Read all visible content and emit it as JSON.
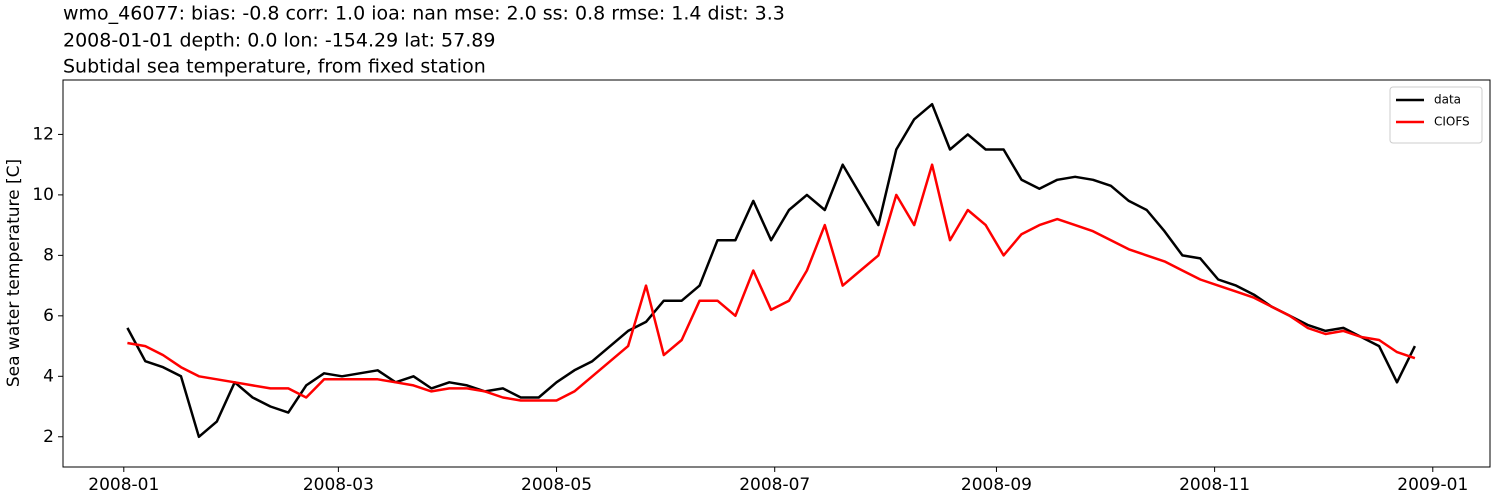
{
  "chart_data": {
    "type": "line",
    "title_lines": [
      "wmo_46077: bias: -0.8  corr: 1.0  ioa: nan  mse: 2.0  ss: 0.8  rmse: 1.4  dist: 3.3",
      "2008-01-01 depth: 0.0 lon: -154.29 lat: 57.89",
      "Subtidal sea temperature, from fixed station"
    ],
    "ylabel": "Sea water temperature [C]",
    "x": [
      "2008-01-02",
      "2008-01-07",
      "2008-01-12",
      "2008-01-17",
      "2008-01-22",
      "2008-01-27",
      "2008-02-01",
      "2008-02-06",
      "2008-02-11",
      "2008-02-16",
      "2008-02-21",
      "2008-02-26",
      "2008-03-02",
      "2008-03-07",
      "2008-03-12",
      "2008-03-17",
      "2008-03-22",
      "2008-03-27",
      "2008-04-01",
      "2008-04-06",
      "2008-04-11",
      "2008-04-16",
      "2008-04-21",
      "2008-04-26",
      "2008-05-01",
      "2008-05-06",
      "2008-05-11",
      "2008-05-16",
      "2008-05-21",
      "2008-05-26",
      "2008-05-31",
      "2008-06-05",
      "2008-06-10",
      "2008-06-15",
      "2008-06-20",
      "2008-06-25",
      "2008-06-30",
      "2008-07-05",
      "2008-07-10",
      "2008-07-15",
      "2008-07-20",
      "2008-07-25",
      "2008-07-30",
      "2008-08-04",
      "2008-08-09",
      "2008-08-14",
      "2008-08-19",
      "2008-08-24",
      "2008-08-29",
      "2008-09-03",
      "2008-09-08",
      "2008-09-13",
      "2008-09-18",
      "2008-09-23",
      "2008-09-28",
      "2008-10-03",
      "2008-10-08",
      "2008-10-13",
      "2008-10-18",
      "2008-10-23",
      "2008-10-28",
      "2008-11-02",
      "2008-11-07",
      "2008-11-12",
      "2008-11-17",
      "2008-11-22",
      "2008-11-27",
      "2008-12-02",
      "2008-12-07",
      "2008-12-12",
      "2008-12-17",
      "2008-12-22",
      "2008-12-27"
    ],
    "series": [
      {
        "name": "data",
        "color": "#000000",
        "values": [
          5.6,
          4.5,
          4.3,
          4.0,
          2.0,
          2.5,
          3.8,
          3.3,
          3.0,
          2.8,
          3.7,
          4.1,
          4.0,
          4.1,
          4.2,
          3.8,
          4.0,
          3.6,
          3.8,
          3.7,
          3.5,
          3.6,
          3.3,
          3.3,
          3.8,
          4.2,
          4.5,
          5.0,
          5.5,
          5.8,
          6.5,
          6.5,
          7.0,
          8.5,
          8.5,
          9.8,
          8.5,
          9.5,
          10.0,
          9.5,
          11.0,
          10.0,
          9.0,
          11.5,
          12.5,
          13.0,
          11.5,
          12.0,
          11.5,
          11.5,
          10.5,
          10.2,
          10.5,
          10.6,
          10.5,
          10.3,
          9.8,
          9.5,
          8.8,
          8.0,
          7.9,
          7.2,
          7.0,
          6.7,
          6.3,
          6.0,
          5.7,
          5.5,
          5.6,
          5.3,
          5.0,
          3.8,
          5.0
        ]
      },
      {
        "name": "CIOFS",
        "color": "#ff0000",
        "values": [
          5.1,
          5.0,
          4.7,
          4.3,
          4.0,
          3.9,
          3.8,
          3.7,
          3.6,
          3.6,
          3.3,
          3.9,
          3.9,
          3.9,
          3.9,
          3.8,
          3.7,
          3.5,
          3.6,
          3.6,
          3.5,
          3.3,
          3.2,
          3.2,
          3.2,
          3.5,
          4.0,
          4.5,
          5.0,
          7.0,
          4.7,
          5.2,
          6.5,
          6.5,
          6.0,
          7.5,
          6.2,
          6.5,
          7.5,
          9.0,
          7.0,
          7.5,
          8.0,
          10.0,
          9.0,
          11.0,
          8.5,
          9.5,
          9.0,
          8.0,
          8.7,
          9.0,
          9.2,
          9.0,
          8.8,
          8.5,
          8.2,
          8.0,
          7.8,
          7.5,
          7.2,
          7.0,
          6.8,
          6.6,
          6.3,
          6.0,
          5.6,
          5.4,
          5.5,
          5.3,
          5.2,
          4.8,
          4.6
        ]
      }
    ],
    "xlim": [
      "2007-12-15",
      "2009-01-17"
    ],
    "xticks": [
      {
        "value": "2008-01-01",
        "label": "2008-01"
      },
      {
        "value": "2008-03-01",
        "label": "2008-03"
      },
      {
        "value": "2008-05-01",
        "label": "2008-05"
      },
      {
        "value": "2008-07-01",
        "label": "2008-07"
      },
      {
        "value": "2008-09-01",
        "label": "2008-09"
      },
      {
        "value": "2008-11-01",
        "label": "2008-11"
      },
      {
        "value": "2009-01-01",
        "label": "2009-01"
      }
    ],
    "ylim": [
      1.0,
      13.8
    ],
    "yticks": [
      2,
      4,
      6,
      8,
      10,
      12
    ],
    "grid": false,
    "legend": "upper right"
  }
}
